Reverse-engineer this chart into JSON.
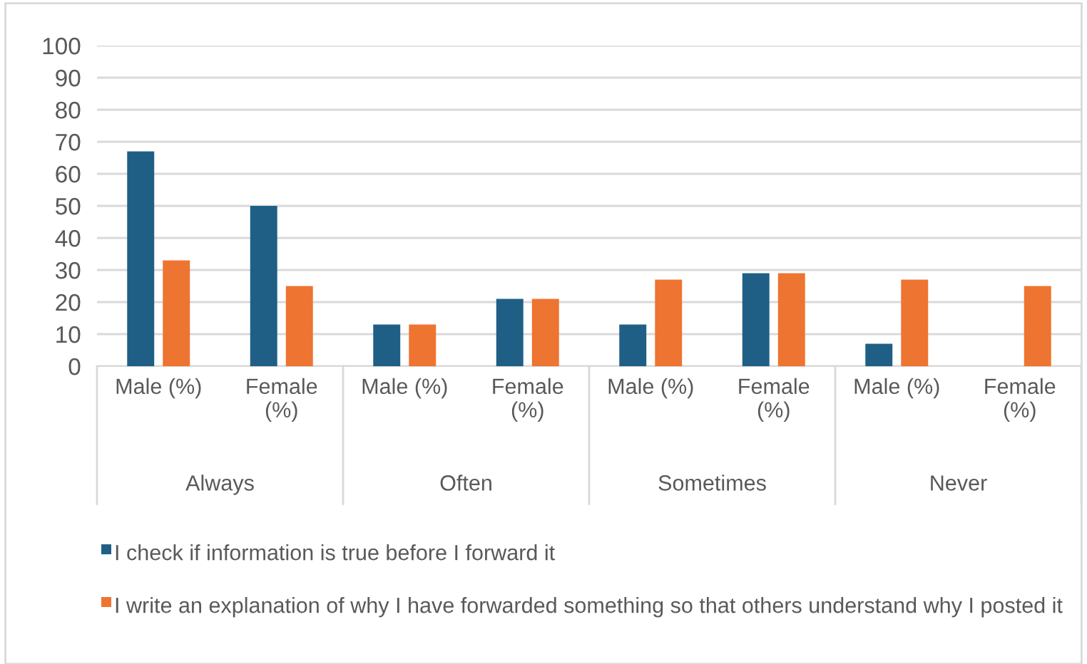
{
  "chart_data": {
    "type": "bar",
    "categories": [
      "Male (%)",
      "Female\n(%)",
      "Male (%)",
      "Female\n(%)",
      "Male (%)",
      "Female\n(%)",
      "Male (%)",
      "Female\n(%)"
    ],
    "series": [
      {
        "name": "I check if information is true before I forward it",
        "color": "#1f5f86",
        "values": [
          67,
          50,
          13,
          21,
          13,
          29,
          7,
          0
        ]
      },
      {
        "name": "I write an explanation of why I have forwarded something so that others understand why I posted it",
        "color": "#ee7431",
        "values": [
          33,
          25,
          13,
          21,
          27,
          29,
          27,
          25
        ]
      }
    ],
    "annotations": [
      "Always",
      "Often",
      "Sometimes",
      "Never"
    ],
    "ylim": [
      0,
      100
    ],
    "yticks": [
      0,
      10,
      20,
      30,
      40,
      50,
      60,
      70,
      80,
      90,
      100
    ],
    "grid": "y",
    "legend": "bottom"
  }
}
